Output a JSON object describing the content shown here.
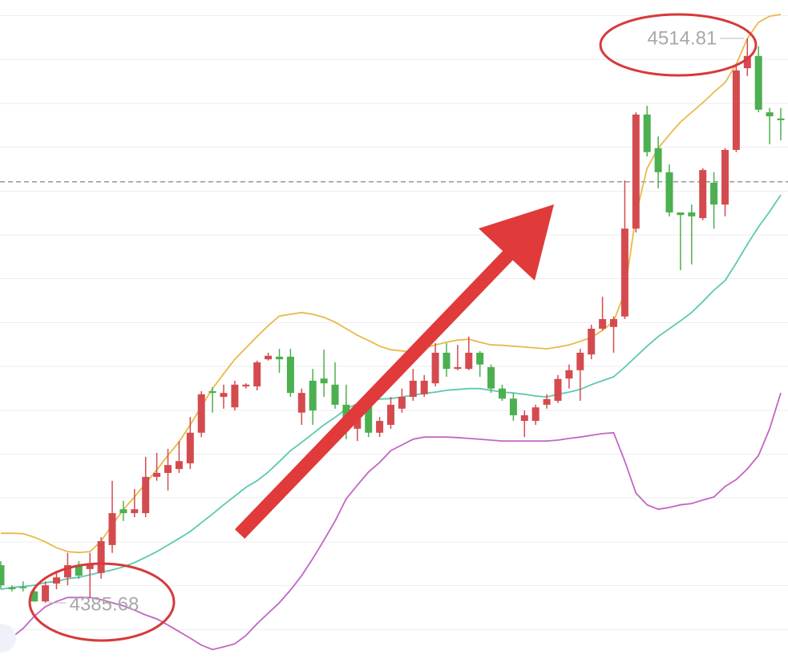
{
  "chart_data": {
    "type": "candlestick",
    "ylim": [
      4371.0,
      4523.6
    ],
    "up_color": "#d44b4f",
    "down_color": "#4caf50",
    "open": [
      4394.3,
      4389.2,
      4389.3,
      4388.3,
      4386.0,
      4390.1,
      4391.5,
      4394.3,
      4393.4,
      4392.5,
      4398.9,
      4407.1,
      4406.2,
      4406.2,
      4414.5,
      4415.4,
      4416.3,
      4417.6,
      4424.6,
      4434.1,
      4432.8,
      4430.4,
      4435.2,
      4435.2,
      4441.4,
      4442.0,
      4442.0,
      4429.2,
      4436.5,
      4437.0,
      4435.6,
      4431.0,
      4425.5,
      4431.0,
      4424.6,
      4426.4,
      4430.1,
      4432.8,
      4433.4,
      4435.9,
      4442.9,
      4439.2,
      4439.2,
      4442.9,
      4439.6,
      4434.7,
      4432.4,
      4427.3,
      4427.3,
      4431.0,
      4431.9,
      4437.0,
      4438.9,
      4442.5,
      4448.4,
      4448.8,
      4451.2,
      4471.3,
      4497.4,
      4489.7,
      4484.2,
      4475.0,
      4475.0,
      4473.7,
      4481.8,
      4476.8,
      4489.3,
      4508.0,
      4510.8,
      4497.9,
      4496.5
    ],
    "high": [
      4395.2,
      4389.7,
      4390.6,
      4388.8,
      4390.6,
      4393.0,
      4397.1,
      4395.2,
      4397.1,
      4400.7,
      4413.6,
      4409.0,
      4411.7,
      4419.1,
      4420.0,
      4420.9,
      4422.7,
      4428.2,
      4434.1,
      4435.0,
      4435.6,
      4436.5,
      4435.9,
      4441.1,
      4442.9,
      4443.8,
      4443.8,
      4434.7,
      4439.2,
      4443.6,
      4440.7,
      4435.6,
      4429.2,
      4431.9,
      4428.2,
      4432.8,
      4434.7,
      4439.2,
      4437.8,
      4445.1,
      4445.1,
      4444.7,
      4446.6,
      4443.3,
      4440.2,
      4435.6,
      4433.7,
      4429.7,
      4431.0,
      4433.4,
      4437.8,
      4440.2,
      4443.8,
      4449.3,
      4455.7,
      4451.2,
      4482.3,
      4497.9,
      4499.4,
      4492.4,
      4486.0,
      4475.0,
      4476.8,
      4485.1,
      4484.2,
      4489.7,
      4508.6,
      4514.81,
      4513.0,
      4498.9,
      4498.9
    ],
    "low": [
      4388.8,
      4388.3,
      4388.3,
      4385.9,
      4385.68,
      4388.8,
      4389.7,
      4391.2,
      4386.9,
      4391.2,
      4397.1,
      4404.4,
      4405.3,
      4405.3,
      4413.6,
      4411.4,
      4415.4,
      4416.3,
      4423.6,
      4429.2,
      4430.1,
      4429.7,
      4434.7,
      4434.3,
      4441.1,
      4438.3,
      4432.8,
      4426.4,
      4426.4,
      4432.8,
      4430.1,
      4423.1,
      4422.7,
      4423.6,
      4423.6,
      4425.5,
      4429.2,
      4431.9,
      4432.8,
      4435.2,
      4437.4,
      4438.9,
      4438.9,
      4437.4,
      4433.7,
      4431.9,
      4427.3,
      4423.6,
      4426.4,
      4430.1,
      4431.4,
      4434.7,
      4431.9,
      4441.4,
      4448.0,
      4442.9,
      4450.6,
      4470.4,
      4487.8,
      4480.5,
      4474.1,
      4461.8,
      4463.1,
      4473.2,
      4471.3,
      4474.1,
      4488.8,
      4506.2,
      4497.9,
      4490.6,
      4491.5
    ],
    "close": [
      4389.7,
      4388.8,
      4389.2,
      4386.0,
      4389.7,
      4391.5,
      4394.3,
      4391.9,
      4394.3,
      4399.8,
      4406.2,
      4406.2,
      4407.1,
      4414.5,
      4415.4,
      4417.2,
      4418.1,
      4424.6,
      4433.4,
      4433.7,
      4433.7,
      4435.6,
      4435.6,
      4440.7,
      4442.2,
      4441.4,
      4433.7,
      4433.7,
      4429.7,
      4435.9,
      4431.0,
      4426.4,
      4427.9,
      4424.6,
      4427.3,
      4431.0,
      4432.8,
      4436.5,
      4436.5,
      4442.9,
      4439.2,
      4439.6,
      4442.9,
      4440.2,
      4434.7,
      4432.4,
      4428.6,
      4428.6,
      4430.4,
      4432.3,
      4436.9,
      4438.9,
      4442.9,
      4448.4,
      4450.6,
      4450.6,
      4471.3,
      4497.4,
      4488.8,
      4484.2,
      4475.0,
      4474.4,
      4474.1,
      4484.7,
      4476.8,
      4489.3,
      4507.5,
      4510.8,
      4498.5,
      4497.0,
      4496.1
    ],
    "bands": {
      "upper": {
        "color": "#e9b949",
        "values": [
          4401.6,
          4401.6,
          4401.5,
          4400.7,
          4399.6,
          4398.3,
          4397.4,
          4397.2,
          4397.4,
          4399.8,
          4403.5,
          4407.0,
          4409.9,
          4413.0,
          4416.1,
          4419.4,
          4422.5,
          4426.4,
          4430.6,
          4434.7,
          4438.1,
          4441.4,
          4444.0,
          4446.6,
          4449.1,
          4451.3,
          4451.7,
          4452.1,
          4451.7,
          4451.0,
          4449.9,
          4448.4,
          4446.9,
          4445.7,
          4444.4,
          4443.6,
          4443.3,
          4443.1,
          4444.0,
          4444.7,
          4445.3,
          4445.8,
          4446.0,
          4445.3,
          4444.7,
          4444.6,
          4444.4,
          4444.2,
          4444.0,
          4443.8,
          4444.2,
          4444.7,
          4445.5,
          4446.4,
          4448.0,
          4450.1,
          4456.7,
          4474.4,
          4485.1,
          4489.7,
          4492.8,
          4495.7,
          4497.9,
          4500.1,
          4502.5,
          4504.7,
          4508.9,
          4514.8,
          4518.5,
          4519.9,
          4520.3
        ]
      },
      "middle": {
        "color": "#5cc8b2",
        "values": [
          4388.8,
          4389.2,
          4389.4,
          4389.7,
          4390.3,
          4390.6,
          4391.2,
          4391.5,
          4392.1,
          4392.7,
          4393.2,
          4393.9,
          4394.9,
          4396.1,
          4397.4,
          4398.9,
          4400.4,
          4402.0,
          4404.0,
          4406.0,
          4408.1,
          4410.1,
          4412.1,
          4413.6,
          4415.6,
          4418.0,
          4420.5,
          4422.4,
          4424.4,
          4426.4,
          4428.1,
          4430.1,
          4431.2,
          4431.7,
          4432.3,
          4432.4,
          4432.8,
          4433.2,
          4433.6,
          4433.9,
          4434.3,
          4434.5,
          4434.7,
          4434.7,
          4434.3,
          4433.9,
          4433.7,
          4433.4,
          4433.0,
          4432.8,
          4433.4,
          4433.9,
          4434.5,
          4435.6,
          4436.5,
          4437.4,
          4439.6,
          4442.0,
          4444.4,
          4446.6,
          4448.4,
          4450.2,
          4452.1,
          4454.6,
          4457.2,
          4459.4,
          4463.4,
          4467.7,
          4471.7,
          4475.2,
          4479.0
        ]
      },
      "lower": {
        "color": "#c266c4",
        "values": [
          4376.0,
          4377.8,
          4379.8,
          4382.6,
          4384.8,
          4386.0,
          4386.9,
          4386.9,
          4386.9,
          4386.4,
          4385.7,
          4385.0,
          4384.0,
          4382.9,
          4382.0,
          4380.6,
          4379.1,
          4377.6,
          4376.0,
          4375.0,
          4375.6,
          4376.3,
          4378.2,
          4380.9,
          4383.3,
          4385.7,
          4388.6,
          4391.9,
          4395.8,
          4400.0,
          4404.4,
          4409.5,
          4412.6,
          4415.6,
          4417.8,
          4420.5,
          4421.8,
          4423.1,
          4423.6,
          4423.6,
          4423.6,
          4423.5,
          4423.3,
          4423.1,
          4422.9,
          4422.7,
          4422.7,
          4422.7,
          4422.7,
          4422.7,
          4422.9,
          4423.3,
          4423.6,
          4424.0,
          4424.4,
          4424.6,
          4418.1,
          4410.8,
          4408.1,
          4407.1,
          4407.5,
          4408.1,
          4408.4,
          4409.2,
          4409.9,
          4412.3,
          4413.9,
          4416.3,
          4419.4,
          4425.5,
          4433.7
        ]
      }
    },
    "price_line": 4482.0
  }
}
